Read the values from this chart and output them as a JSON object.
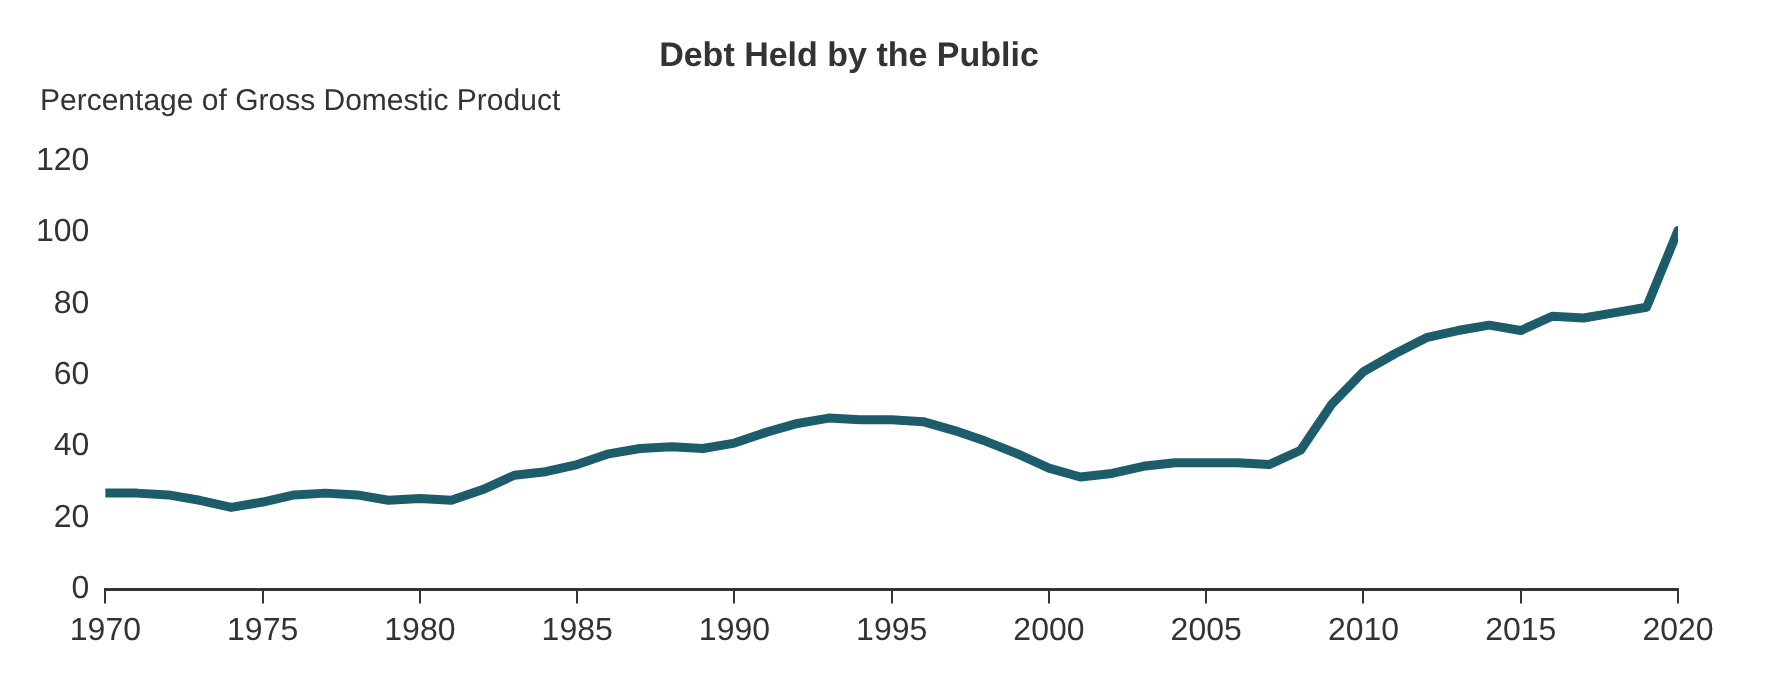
{
  "chart_data": {
    "type": "line",
    "title": "Debt Held by the Public",
    "ylabel": "Percentage of Gross Domestic Product",
    "x": [
      1970,
      1971,
      1972,
      1973,
      1974,
      1975,
      1976,
      1977,
      1978,
      1979,
      1980,
      1981,
      1982,
      1983,
      1984,
      1985,
      1986,
      1987,
      1988,
      1989,
      1990,
      1991,
      1992,
      1993,
      1994,
      1995,
      1996,
      1997,
      1998,
      1999,
      2000,
      2001,
      2002,
      2003,
      2004,
      2005,
      2006,
      2007,
      2008,
      2009,
      2010,
      2011,
      2012,
      2013,
      2014,
      2015,
      2016,
      2017,
      2018,
      2019,
      2020
    ],
    "series": [
      {
        "color": "#1d5c6b",
        "values": [
          27,
          27,
          26.5,
          25,
          23,
          24.5,
          26.5,
          27,
          26.5,
          25,
          25.5,
          25,
          28,
          32,
          33,
          35,
          38,
          39.5,
          40,
          39.5,
          41,
          44,
          46.5,
          48,
          47.5,
          47.5,
          47,
          44.5,
          41.5,
          38,
          34,
          31.5,
          32.5,
          34.5,
          35.5,
          35.5,
          35.5,
          35,
          39,
          52,
          61,
          66,
          70.5,
          72.5,
          74,
          72.5,
          76.5,
          76,
          77.5,
          79,
          100.5
        ]
      }
    ],
    "xlim": [
      1970,
      2020
    ],
    "xticks": [
      1970,
      1975,
      1980,
      1985,
      1990,
      1995,
      2000,
      2005,
      2010,
      2015,
      2020
    ],
    "ylim": [
      0,
      120
    ],
    "yticks": [
      0,
      20,
      40,
      60,
      80,
      100,
      120
    ],
    "grid": false,
    "legend": false,
    "marker": "none",
    "line_style": "solid"
  }
}
